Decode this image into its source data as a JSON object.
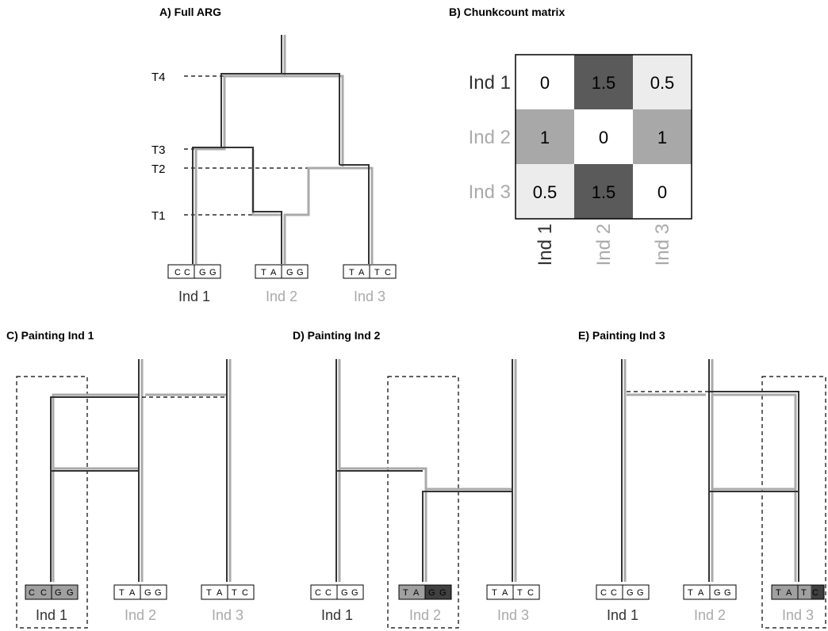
{
  "colors": {
    "dark": "#333333",
    "light": "#aaaaaa",
    "black": "#000000"
  },
  "panels": {
    "a_title": "A) Full ARG",
    "b_title": "B) Chunkcount matrix",
    "c_title": "C) Painting Ind 1",
    "d_title": "D) Painting Ind 2",
    "e_title": "E) Painting Ind 3"
  },
  "arg_times": [
    "T1",
    "T2",
    "T3",
    "T4"
  ],
  "individuals": [
    {
      "label": "Ind 1",
      "sequence": [
        "C",
        "C",
        "G",
        "G"
      ],
      "color": "#333333"
    },
    {
      "label": "Ind 2",
      "sequence": [
        "T",
        "A",
        "G",
        "G"
      ],
      "color": "#aaaaaa"
    },
    {
      "label": "Ind 3",
      "sequence": [
        "T",
        "A",
        "T",
        "C"
      ],
      "color": "#aaaaaa"
    }
  ],
  "matrix": {
    "row_labels": [
      "Ind 1",
      "Ind 2",
      "Ind 3"
    ],
    "col_labels": [
      "Ind 1",
      "Ind 2",
      "Ind 3"
    ],
    "values": [
      [
        "0",
        "1.5",
        "0.5"
      ],
      [
        "1",
        "0",
        "1"
      ],
      [
        "0.5",
        "1.5",
        "0"
      ]
    ],
    "fills": [
      [
        "#ffffff",
        "#5a5a5a",
        "#ececec"
      ],
      [
        "#a8a8a8",
        "#ffffff",
        "#a8a8a8"
      ],
      [
        "#ececec",
        "#5a5a5a",
        "#ffffff"
      ]
    ],
    "label_colors": [
      "#333333",
      "#aaaaaa",
      "#aaaaaa"
    ]
  },
  "painting_shading": {
    "c": [
      "#a0a0a0",
      "#a0a0a0",
      "#a0a0a0",
      "#a0a0a0"
    ],
    "d": [
      "#a0a0a0",
      "#a0a0a0",
      "#404040",
      "#404040"
    ],
    "e": [
      "#a0a0a0",
      "#a0a0a0",
      "#a0a0a0",
      "#404040"
    ]
  }
}
